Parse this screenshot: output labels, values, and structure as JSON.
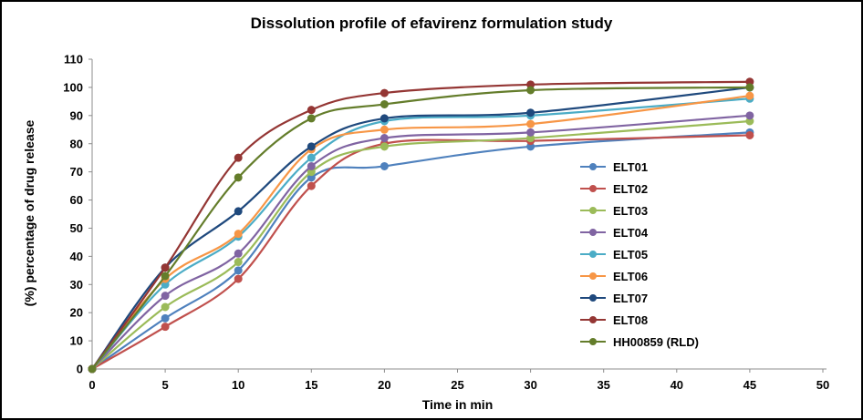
{
  "frame": {
    "background": "#FFFFFF",
    "border_color": "#000000",
    "axis_color": "#8C8C8C"
  },
  "chart_data": {
    "type": "line",
    "title": "Dissolution profile of efavirenz formulation study",
    "xlabel": "Time in min",
    "ylabel": "(%) percentage of drug release",
    "x": [
      0,
      5,
      10,
      15,
      20,
      30,
      45
    ],
    "xlim": [
      0,
      50
    ],
    "ylim": [
      0,
      110
    ],
    "x_ticks": [
      0,
      5,
      10,
      15,
      20,
      25,
      30,
      35,
      40,
      45,
      50
    ],
    "y_ticks": [
      0,
      10,
      20,
      30,
      40,
      50,
      60,
      70,
      80,
      90,
      100,
      110
    ],
    "grid": false,
    "smooth": true,
    "marker": "circle",
    "legend_position": "right-inside",
    "series": [
      {
        "name": "ELT01",
        "color": "#4F81BD",
        "values": [
          0,
          18,
          35,
          68,
          72,
          79,
          84
        ]
      },
      {
        "name": "ELT02",
        "color": "#C0504D",
        "values": [
          0,
          15,
          32,
          65,
          80,
          81,
          83
        ]
      },
      {
        "name": "ELT03",
        "color": "#9BBB59",
        "values": [
          0,
          22,
          38,
          70,
          79,
          82,
          88
        ]
      },
      {
        "name": "ELT04",
        "color": "#8064A2",
        "values": [
          0,
          26,
          41,
          72,
          82,
          84,
          90
        ]
      },
      {
        "name": "ELT05",
        "color": "#4BACC6",
        "values": [
          0,
          30,
          47,
          75,
          88,
          90,
          96
        ]
      },
      {
        "name": "ELT06",
        "color": "#F79646",
        "values": [
          0,
          32,
          48,
          78,
          85,
          87,
          97
        ]
      },
      {
        "name": "ELT07",
        "color": "#1F497D",
        "values": [
          0,
          36,
          56,
          79,
          89,
          91,
          100
        ]
      },
      {
        "name": "ELT08",
        "color": "#943634",
        "values": [
          0,
          36,
          75,
          92,
          98,
          101,
          102
        ]
      },
      {
        "name": "HH00859 (RLD)",
        "color": "#647D2B",
        "values": [
          0,
          33,
          68,
          89,
          94,
          99,
          100
        ]
      }
    ]
  }
}
